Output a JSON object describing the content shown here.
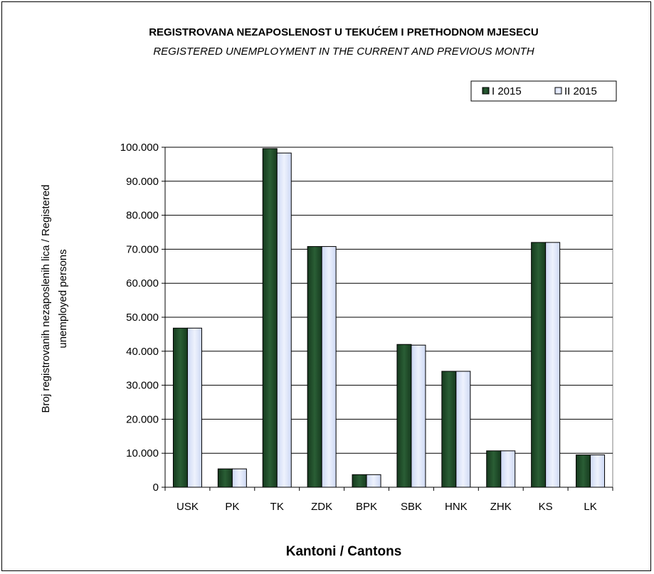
{
  "chart_data": {
    "type": "bar",
    "title": "REGISTROVANA NEZAPOSLENOST U TEKUĆEM I PRETHODNOM   MJESECU",
    "subtitle": "REGISTERED UNEMPLOYMENT IN THE CURRENT AND PREVIOUS MONTH",
    "xlabel": "Kantoni / Cantons",
    "ylabel_line1": "Broj registrovanih nezaposlenih lica / Registered",
    "ylabel_line2": "unemployed persons",
    "categories": [
      "USK",
      "PK",
      "TK",
      "ZDK",
      "BPK",
      "SBK",
      "HNK",
      "ZHK",
      "KS",
      "LK"
    ],
    "series": [
      {
        "name": "I 2015",
        "values": [
          46800,
          5400,
          99600,
          70800,
          3700,
          42000,
          34100,
          10700,
          72000,
          9500
        ]
      },
      {
        "name": "II 2015",
        "values": [
          46800,
          5400,
          98300,
          70800,
          3700,
          41800,
          34100,
          10700,
          72000,
          9500
        ]
      }
    ],
    "ylim": [
      0,
      100000
    ],
    "yticks": [
      {
        "value": 0,
        "label": "0"
      },
      {
        "value": 10000,
        "label": "10.000"
      },
      {
        "value": 20000,
        "label": "20.000"
      },
      {
        "value": 30000,
        "label": "30.000"
      },
      {
        "value": 40000,
        "label": "40.000"
      },
      {
        "value": 50000,
        "label": "50.000"
      },
      {
        "value": 60000,
        "label": "60.000"
      },
      {
        "value": 70000,
        "label": "70.000"
      },
      {
        "value": 80000,
        "label": "80.000"
      },
      {
        "value": 90000,
        "label": "90.000"
      },
      {
        "value": 100000,
        "label": "100.000"
      }
    ],
    "grid": true,
    "legend_position": "top-right",
    "colors": {
      "I 2015": "#1f4a2a",
      "II 2015": "#dfe7fb"
    }
  }
}
